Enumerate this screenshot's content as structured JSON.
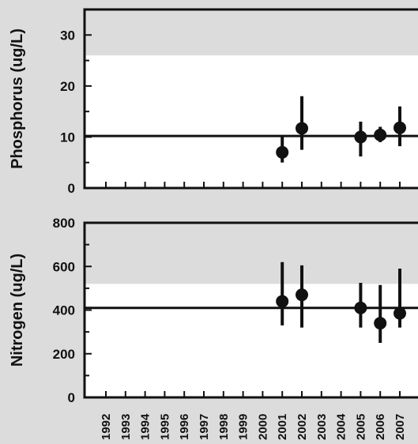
{
  "chart_data": [
    {
      "type": "scatter",
      "ylabel": "Phosphorus (ug/L)",
      "ylim": [
        0,
        35
      ],
      "yticks": [
        0,
        10,
        20,
        30
      ],
      "reference_line": 10.2,
      "shaded_band_above": 26,
      "categories": [
        "1992",
        "1993",
        "1994",
        "1995",
        "1996",
        "1997",
        "1998",
        "1999",
        "2000",
        "2001",
        "2002",
        "2003",
        "2004",
        "2005",
        "2006",
        "2007"
      ],
      "series": [
        {
          "points": [
            {
              "x": "2001",
              "y": 7.0,
              "low": 5.0,
              "high": 10.0
            },
            {
              "x": "2002",
              "y": 11.7,
              "low": 7.5,
              "high": 18.0
            },
            {
              "x": "2005",
              "y": 10.0,
              "low": 6.2,
              "high": 13.0
            },
            {
              "x": "2006",
              "y": 10.4,
              "low": 9.0,
              "high": 12.0
            },
            {
              "x": "2007",
              "y": 11.8,
              "low": 8.2,
              "high": 16.0
            }
          ]
        }
      ]
    },
    {
      "type": "scatter",
      "ylabel": "Nitrogen (ug/L)",
      "ylim": [
        0,
        800
      ],
      "yticks": [
        0,
        200,
        400,
        600,
        800
      ],
      "reference_line": 410,
      "shaded_band_above": 520,
      "categories": [
        "1992",
        "1993",
        "1994",
        "1995",
        "1996",
        "1997",
        "1998",
        "1999",
        "2000",
        "2001",
        "2002",
        "2003",
        "2004",
        "2005",
        "2006",
        "2007"
      ],
      "series": [
        {
          "points": [
            {
              "x": "2001",
              "y": 440,
              "low": 330,
              "high": 620
            },
            {
              "x": "2002",
              "y": 470,
              "low": 320,
              "high": 605
            },
            {
              "x": "2005",
              "y": 410,
              "low": 320,
              "high": 525
            },
            {
              "x": "2006",
              "y": 340,
              "low": 250,
              "high": 515
            },
            {
              "x": "2007",
              "y": 385,
              "low": 320,
              "high": 590
            }
          ]
        }
      ]
    }
  ]
}
